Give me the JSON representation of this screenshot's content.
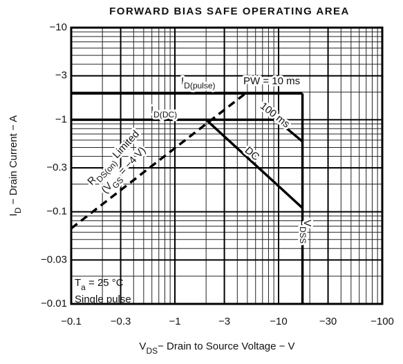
{
  "chart_data": {
    "type": "line",
    "title": "FORWARD BIAS SAFE OPERATING AREA",
    "x_label": [
      "V",
      "DS",
      "− Drain to Source Voltage − V"
    ],
    "y_label": [
      "I",
      "D",
      " − Drain Current − A"
    ],
    "xscale": "log",
    "yscale": "log",
    "grid": true,
    "color": "#000000",
    "xlim": [
      -0.1,
      -100
    ],
    "ylim": [
      -0.01,
      -10
    ],
    "xticks": [
      {
        "value": -0.1,
        "label": "−0.1"
      },
      {
        "value": -0.3,
        "label": "−0.3"
      },
      {
        "value": -1,
        "label": "−1"
      },
      {
        "value": -3,
        "label": "−3"
      },
      {
        "value": -10,
        "label": "−10"
      },
      {
        "value": -30,
        "label": "−30"
      },
      {
        "value": -100,
        "label": "−100"
      }
    ],
    "yticks": [
      {
        "value": -0.01,
        "label": "−0.01"
      },
      {
        "value": -0.03,
        "label": "−0.03"
      },
      {
        "value": -0.1,
        "label": "−0.1"
      },
      {
        "value": -0.3,
        "label": "−0.3"
      },
      {
        "value": -1,
        "label": "−1"
      },
      {
        "value": -3,
        "label": "−3"
      },
      {
        "value": -10,
        "label": "−10"
      }
    ],
    "series": [
      {
        "x": [
          -0.1,
          -4.8
        ],
        "y": [
          -0.066,
          -1.93
        ],
        "dashed": true
      },
      {
        "x": [
          -0.1,
          -17
        ],
        "y": [
          -1.93,
          -1.93
        ]
      },
      {
        "x": [
          -0.1,
          -9.5,
          -17
        ],
        "y": [
          -1,
          -1,
          -0.58
        ]
      },
      {
        "x": [
          -2,
          -17
        ],
        "y": [
          -1,
          -0.11
        ]
      },
      {
        "x": [
          -17,
          -17
        ],
        "y": [
          -1.93,
          -0.01
        ]
      }
    ],
    "annotations": [
      [
        "I",
        "D(pulse)"
      ],
      [
        "PW = 10 ms"
      ],
      [
        "I",
        "D(DC)"
      ],
      [
        "100 ms"
      ],
      [
        "DC"
      ],
      [
        "R",
        "DS(on)",
        " Limited"
      ],
      [
        "(V",
        "GS",
        " = −4 V)"
      ],
      [
        "V",
        "DSS"
      ],
      [
        "T",
        "a",
        " = 25 °C"
      ],
      [
        "Single pulse"
      ]
    ]
  }
}
